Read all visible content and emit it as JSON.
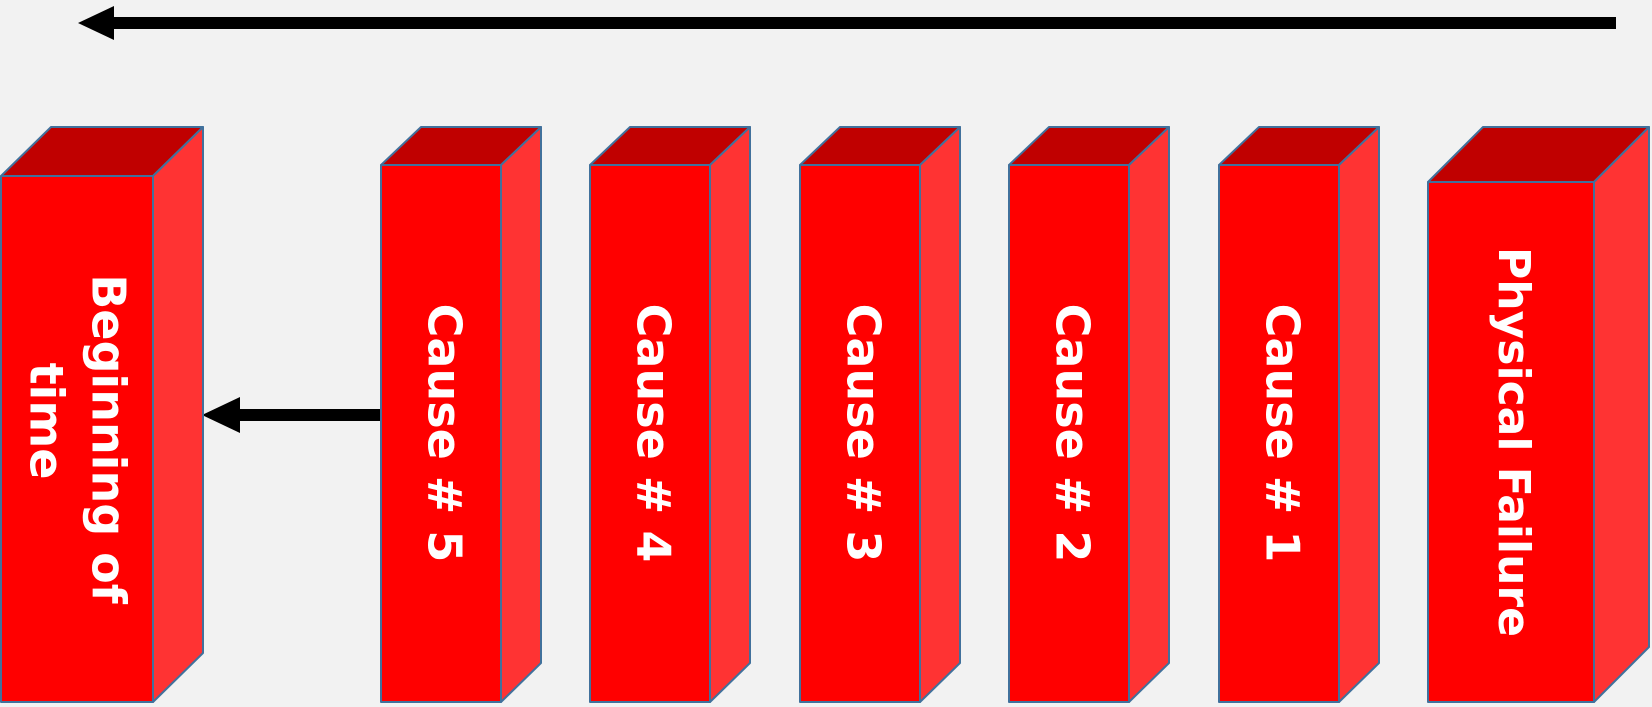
{
  "colors": {
    "background": "#f2f2f2",
    "front_face": "#ff0000",
    "top_face": "#c00000",
    "side_face": "#ff3333",
    "outline": "#41719c",
    "arrow": "#000000",
    "label": "#ffffff"
  },
  "blocks": [
    {
      "id": "beginning-of-time",
      "lines": [
        "Beginning of",
        "time"
      ]
    },
    {
      "id": "cause-5",
      "lines": [
        "Cause # 5"
      ]
    },
    {
      "id": "cause-4",
      "lines": [
        "Cause # 4"
      ]
    },
    {
      "id": "cause-3",
      "lines": [
        "Cause # 3"
      ]
    },
    {
      "id": "cause-2",
      "lines": [
        "Cause # 2"
      ]
    },
    {
      "id": "cause-1",
      "lines": [
        "Cause # 1"
      ]
    },
    {
      "id": "physical-failure",
      "lines": [
        "Physical Failure"
      ]
    }
  ],
  "arrows": [
    {
      "id": "timeline-arrow",
      "direction": "left"
    },
    {
      "id": "cause5-to-beginning-arrow",
      "direction": "left"
    }
  ]
}
